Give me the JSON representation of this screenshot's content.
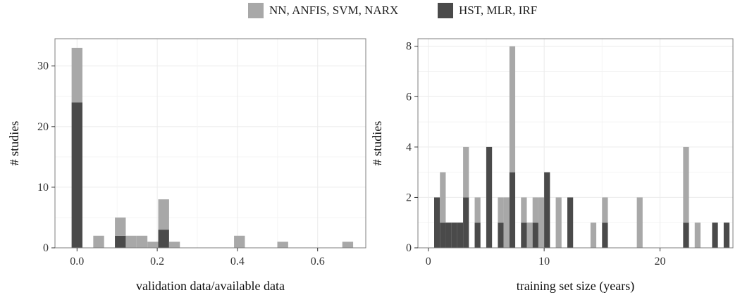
{
  "colors": {
    "nn_group": "#a8a8a8",
    "hst_group": "#4a4a4a",
    "grid": "#ebebeb",
    "border": "#7f7f7f"
  },
  "chart_data": [
    {
      "type": "bar",
      "stacked": true,
      "xlabel": "validation data/available data",
      "ylabel": "# studies",
      "xlim": [
        -0.055,
        0.72
      ],
      "ylim": [
        0,
        34.5
      ],
      "bin_width": 0.027,
      "xticks": [
        0.0,
        0.2,
        0.4,
        0.6
      ],
      "xtick_labels": [
        "0.0",
        "0.2",
        "0.4",
        "0.6"
      ],
      "yticks": [
        0,
        10,
        20,
        30
      ],
      "ytick_labels": [
        "0",
        "10",
        "20",
        "30"
      ],
      "grid": true,
      "x": [
        0.0,
        0.054,
        0.108,
        0.135,
        0.162,
        0.189,
        0.216,
        0.243,
        0.405,
        0.513,
        0.675
      ],
      "series": [
        {
          "name": "HST, MLR, IRF",
          "color_key": "hst_group",
          "values": [
            24,
            0,
            2,
            0,
            0,
            0,
            3,
            0,
            0,
            0,
            0
          ]
        },
        {
          "name": "NN, ANFIS, SVM, NARX",
          "color_key": "nn_group",
          "values": [
            9,
            2,
            3,
            2,
            2,
            1,
            5,
            1,
            2,
            1,
            1
          ]
        }
      ]
    },
    {
      "type": "bar",
      "stacked": true,
      "xlabel": "training set size (years)",
      "ylabel": "# studies",
      "xlim": [
        -0.9,
        26.3
      ],
      "ylim": [
        0,
        8.3
      ],
      "bin_width": 0.5,
      "xticks": [
        0,
        10,
        20
      ],
      "xtick_labels": [
        "0",
        "10",
        "20"
      ],
      "yticks": [
        0,
        2,
        4,
        6,
        8
      ],
      "ytick_labels": [
        "0",
        "2",
        "4",
        "6",
        "8"
      ],
      "grid": true,
      "x": [
        0.75,
        1.25,
        1.75,
        2.25,
        2.75,
        3.25,
        4.25,
        5.25,
        6.25,
        6.75,
        7.25,
        8.25,
        8.75,
        9.25,
        9.75,
        10.25,
        11.25,
        12.25,
        14.25,
        15.25,
        18.25,
        22.25,
        23.25,
        24.75,
        25.75
      ],
      "series": [
        {
          "name": "HST, MLR, IRF",
          "color_key": "hst_group",
          "values": [
            2,
            1,
            1,
            1,
            1,
            2,
            1,
            4,
            1,
            0,
            3,
            1,
            0,
            1,
            0,
            3,
            0,
            2,
            0,
            1,
            0,
            1,
            0,
            1,
            1
          ]
        },
        {
          "name": "NN, ANFIS, SVM, NARX",
          "color_key": "nn_group",
          "values": [
            0,
            2,
            0,
            0,
            0,
            2,
            1,
            0,
            1,
            2,
            5,
            1,
            1,
            1,
            2,
            0,
            2,
            0,
            1,
            1,
            2,
            3,
            1,
            0,
            0
          ]
        }
      ]
    }
  ],
  "legend": {
    "items": [
      {
        "label": "NN, ANFIS, SVM, NARX",
        "color_key": "nn_group"
      },
      {
        "label": "HST, MLR, IRF",
        "color_key": "hst_group"
      }
    ]
  }
}
